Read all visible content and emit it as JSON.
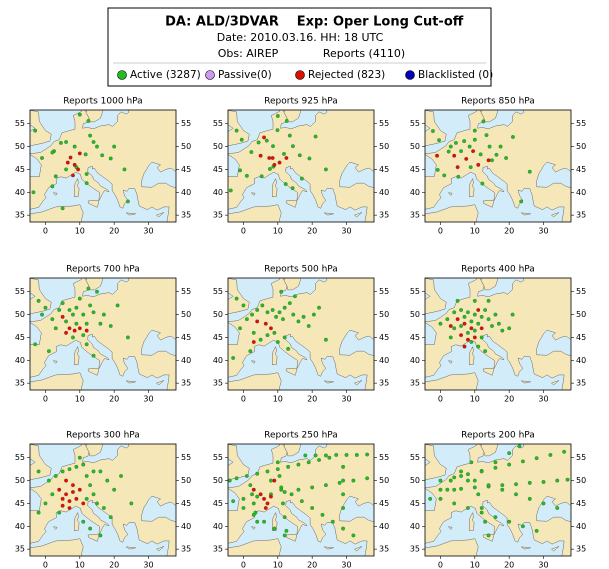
{
  "header": {
    "title_left": "DA: ALD/3DVAR",
    "title_right": "Exp: Oper Long Cut-off",
    "date": "Date: 2010.03.16. HH: 18 UTC",
    "obs": "Obs: AIREP",
    "reports": "Reports (4110)"
  },
  "legend": [
    {
      "label": "Active (3287)",
      "color": "#22bb22"
    },
    {
      "label": "Passive(0)",
      "color": "#cc99ee"
    },
    {
      "label": "Rejected (823)",
      "color": "#dd1100"
    },
    {
      "label": "Blacklisted (0)",
      "color": "#0000bb"
    }
  ],
  "axes": {
    "xlim": [
      -4.5,
      38
    ],
    "ylim": [
      33.5,
      58
    ],
    "xticks": [
      0,
      10,
      20,
      30
    ],
    "yticks": [
      35,
      40,
      45,
      50,
      55
    ]
  },
  "panels": [
    {
      "title": "Reports 1000 hPa",
      "active": [
        [
          2.5,
          49
        ],
        [
          2,
          48.7
        ],
        [
          4.5,
          50.8
        ],
        [
          8.5,
          50
        ],
        [
          11.7,
          48.3
        ],
        [
          14,
          51
        ],
        [
          16.5,
          48.1
        ],
        [
          13,
          52.4
        ],
        [
          6,
          51
        ],
        [
          12.5,
          55.6
        ],
        [
          19,
          47.4
        ],
        [
          -3,
          53.5
        ],
        [
          9,
          45.5
        ],
        [
          12,
          42
        ],
        [
          2,
          41.3
        ],
        [
          -1,
          47.5
        ],
        [
          6,
          45
        ],
        [
          15,
          50
        ],
        [
          20,
          50
        ],
        [
          23,
          45
        ],
        [
          -3.5,
          40
        ],
        [
          10,
          57
        ],
        [
          12,
          44
        ],
        [
          24,
          38
        ],
        [
          3,
          43.5
        ],
        [
          5,
          36.5
        ]
      ],
      "rejected": [
        [
          7.3,
          47.6
        ],
        [
          8.5,
          46
        ],
        [
          9.5,
          45
        ],
        [
          6.5,
          46.5
        ],
        [
          10,
          48.5
        ],
        [
          8,
          43.7
        ]
      ]
    },
    {
      "title": "Reports 925 hPa",
      "active": [
        [
          2.3,
          48.8
        ],
        [
          4.4,
          50.9
        ],
        [
          8.6,
          50.1
        ],
        [
          11.8,
          48.4
        ],
        [
          6.8,
          51.3
        ],
        [
          13.5,
          52.4
        ],
        [
          16.4,
          48.1
        ],
        [
          -0.5,
          51.5
        ],
        [
          -2,
          53.5
        ],
        [
          9.9,
          53.6
        ],
        [
          12.6,
          55.6
        ],
        [
          14.4,
          50.1
        ],
        [
          19.2,
          47.4
        ],
        [
          21,
          52.2
        ],
        [
          8.7,
          45.6
        ],
        [
          7.7,
          45.1
        ],
        [
          1,
          43.6
        ],
        [
          -1,
          44.8
        ],
        [
          5.3,
          43.5
        ],
        [
          -3.7,
          40.4
        ],
        [
          12.3,
          41.8
        ],
        [
          14.3,
          40.9
        ],
        [
          10,
          56.7
        ],
        [
          24,
          45
        ],
        [
          17,
          43
        ]
      ],
      "rejected": [
        [
          7.5,
          47.5
        ],
        [
          8.5,
          47.5
        ],
        [
          9,
          46
        ],
        [
          10.5,
          46.5
        ],
        [
          6,
          52
        ],
        [
          5,
          48
        ],
        [
          12.5,
          47.5
        ]
      ]
    },
    {
      "title": "Reports 850 hPa",
      "active": [
        [
          2.4,
          48.9
        ],
        [
          4.5,
          50.8
        ],
        [
          8.5,
          50
        ],
        [
          11.7,
          48.3
        ],
        [
          6.9,
          51.2
        ],
        [
          13.4,
          52.5
        ],
        [
          16.3,
          48.2
        ],
        [
          -0.4,
          51.4
        ],
        [
          -2.2,
          53.4
        ],
        [
          10,
          53.5
        ],
        [
          12.5,
          55.5
        ],
        [
          14.3,
          50
        ],
        [
          19.1,
          47.5
        ],
        [
          21.1,
          52.1
        ],
        [
          8.8,
          45.5
        ],
        [
          1.1,
          43.7
        ],
        [
          -0.8,
          44.9
        ],
        [
          5.2,
          43.4
        ],
        [
          12.2,
          41.9
        ],
        [
          17.5,
          50
        ],
        [
          6,
          49
        ],
        [
          3,
          50
        ],
        [
          10,
          51.5
        ],
        [
          15,
          47
        ],
        [
          26,
          44.5
        ],
        [
          23.5,
          38
        ]
      ],
      "rejected": [
        [
          7.5,
          47.3
        ],
        [
          5,
          45.5
        ],
        [
          9.5,
          49
        ],
        [
          11,
          46
        ],
        [
          4,
          48
        ],
        [
          -1,
          48
        ],
        [
          14,
          47
        ]
      ]
    },
    {
      "title": "Reports 700 hPa",
      "active": [
        [
          2,
          49
        ],
        [
          4,
          51
        ],
        [
          5,
          52.5
        ],
        [
          7,
          51
        ],
        [
          8,
          50
        ],
        [
          9,
          51.5
        ],
        [
          10,
          53.5
        ],
        [
          11,
          50
        ],
        [
          12,
          48
        ],
        [
          13,
          52
        ],
        [
          14,
          50.5
        ],
        [
          16,
          48
        ],
        [
          17,
          50
        ],
        [
          19,
          47.5
        ],
        [
          21,
          52
        ],
        [
          0,
          51.5
        ],
        [
          -2,
          53
        ],
        [
          -1,
          50
        ],
        [
          3,
          47
        ],
        [
          6,
          48.5
        ],
        [
          9,
          48
        ],
        [
          11,
          45.5
        ],
        [
          8,
          45
        ],
        [
          12,
          43.5
        ],
        [
          14,
          41
        ],
        [
          -3,
          43.5
        ],
        [
          1,
          42
        ],
        [
          24,
          45
        ],
        [
          15,
          55
        ],
        [
          12.5,
          55.7
        ]
      ],
      "rejected": [
        [
          7,
          47
        ],
        [
          8.5,
          46.5
        ],
        [
          10,
          47
        ],
        [
          6,
          46
        ],
        [
          5,
          49.5
        ],
        [
          12,
          46.5
        ]
      ]
    },
    {
      "title": "Reports 500 hPa",
      "active": [
        [
          1,
          49
        ],
        [
          2.5,
          50
        ],
        [
          4,
          51
        ],
        [
          5.5,
          52
        ],
        [
          7,
          50.5
        ],
        [
          8.5,
          51
        ],
        [
          9.5,
          49.5
        ],
        [
          10.5,
          50.5
        ],
        [
          11.5,
          49
        ],
        [
          12,
          51.5
        ],
        [
          13.5,
          52.5
        ],
        [
          14.5,
          50
        ],
        [
          16,
          48.5
        ],
        [
          17.5,
          49.5
        ],
        [
          19,
          47.5
        ],
        [
          20.5,
          50
        ],
        [
          22,
          51.5
        ],
        [
          0,
          52
        ],
        [
          -2,
          53.5
        ],
        [
          -1,
          47
        ],
        [
          3,
          46
        ],
        [
          5,
          44.5
        ],
        [
          7,
          45.5
        ],
        [
          9,
          46
        ],
        [
          10,
          44
        ],
        [
          12,
          45
        ],
        [
          13,
          42.5
        ],
        [
          -3,
          40.5
        ],
        [
          2,
          42
        ],
        [
          24,
          44.5
        ],
        [
          11,
          55
        ],
        [
          15,
          54
        ]
      ],
      "rejected": [
        [
          6.5,
          48
        ],
        [
          8,
          47
        ],
        [
          4,
          48.5
        ],
        [
          3,
          44
        ]
      ]
    },
    {
      "title": "Reports 400 hPa",
      "active": [
        [
          2,
          49
        ],
        [
          4,
          50.5
        ],
        [
          6,
          51
        ],
        [
          7,
          49.5
        ],
        [
          8,
          50.5
        ],
        [
          9,
          48.5
        ],
        [
          10,
          50
        ],
        [
          11,
          48
        ],
        [
          12,
          49.5
        ],
        [
          13,
          51
        ],
        [
          14,
          49
        ],
        [
          15,
          47.5
        ],
        [
          16,
          50
        ],
        [
          17,
          48
        ],
        [
          18,
          46.5
        ],
        [
          20,
          47
        ],
        [
          6,
          47.5
        ],
        [
          8,
          46
        ],
        [
          10,
          46.5
        ],
        [
          12,
          45
        ],
        [
          9,
          44
        ],
        [
          11,
          43
        ],
        [
          13,
          42
        ],
        [
          4,
          47
        ],
        [
          3,
          45
        ],
        [
          0,
          48
        ],
        [
          5,
          53
        ],
        [
          10,
          53
        ],
        [
          14,
          53
        ],
        [
          21,
          50
        ]
      ],
      "rejected": [
        [
          5,
          49
        ],
        [
          7,
          48
        ],
        [
          9,
          47
        ],
        [
          6,
          45.5
        ],
        [
          8,
          44.5
        ],
        [
          10,
          45
        ],
        [
          11,
          51
        ],
        [
          3,
          47.5
        ],
        [
          12,
          47
        ],
        [
          7,
          43
        ]
      ]
    },
    {
      "title": "Reports 300 hPa",
      "active": [
        [
          1,
          50
        ],
        [
          3,
          51
        ],
        [
          5,
          52
        ],
        [
          7,
          52.5
        ],
        [
          9,
          53
        ],
        [
          11,
          53.5
        ],
        [
          12,
          51
        ],
        [
          13,
          49
        ],
        [
          14,
          52
        ],
        [
          16,
          52
        ],
        [
          18,
          50
        ],
        [
          20,
          48
        ],
        [
          14,
          47
        ],
        [
          12,
          46
        ],
        [
          15,
          45
        ],
        [
          17,
          44
        ],
        [
          19,
          42
        ],
        [
          2,
          47
        ],
        [
          0,
          45
        ],
        [
          -2,
          43
        ],
        [
          4,
          43
        ],
        [
          11,
          41
        ],
        [
          13,
          39.5
        ],
        [
          22,
          51
        ],
        [
          10,
          55
        ],
        [
          -2,
          52
        ],
        [
          25,
          45
        ],
        [
          16,
          38
        ]
      ],
      "rejected": [
        [
          4,
          48
        ],
        [
          5,
          46
        ],
        [
          6,
          47
        ],
        [
          7,
          45.5
        ],
        [
          8,
          47.5
        ],
        [
          9,
          46
        ],
        [
          10,
          48
        ],
        [
          7,
          44
        ],
        [
          11,
          45
        ],
        [
          5,
          44.5
        ],
        [
          8,
          49
        ],
        [
          6,
          50
        ]
      ]
    },
    {
      "title": "Reports 250 hPa",
      "active": [
        [
          18,
          55.5
        ],
        [
          21,
          55.5
        ],
        [
          24,
          55.5
        ],
        [
          27,
          55.6
        ],
        [
          30,
          55.6
        ],
        [
          33,
          55.6
        ],
        [
          36,
          55.7
        ],
        [
          -4,
          50
        ],
        [
          -2,
          50.5
        ],
        [
          1,
          51
        ],
        [
          4,
          51.5
        ],
        [
          7,
          52
        ],
        [
          10,
          52.5
        ],
        [
          13,
          53
        ],
        [
          16,
          53.5
        ],
        [
          19,
          54
        ],
        [
          22,
          54.5
        ],
        [
          25,
          55
        ],
        [
          0,
          46
        ],
        [
          4,
          46.5
        ],
        [
          8,
          47
        ],
        [
          12,
          47.5
        ],
        [
          16,
          48
        ],
        [
          20,
          48.5
        ],
        [
          24,
          49
        ],
        [
          28,
          49.5
        ],
        [
          32,
          50
        ],
        [
          36,
          50.5
        ],
        [
          8,
          50
        ],
        [
          11,
          48.5
        ],
        [
          14,
          47
        ],
        [
          17,
          45.5
        ],
        [
          20,
          44
        ],
        [
          23,
          42.5
        ],
        [
          26,
          41
        ],
        [
          29,
          39.5
        ],
        [
          32,
          38
        ],
        [
          2,
          49
        ],
        [
          2.5,
          47
        ],
        [
          3,
          45
        ],
        [
          3.5,
          43
        ],
        [
          4,
          41
        ],
        [
          10,
          54
        ],
        [
          10.5,
          51
        ],
        [
          11,
          48
        ],
        [
          11.5,
          45
        ],
        [
          12,
          42
        ],
        [
          12.5,
          39
        ],
        [
          -3,
          45.5
        ],
        [
          0,
          44
        ],
        [
          3,
          42.5
        ],
        [
          6,
          41
        ],
        [
          9,
          39.5
        ],
        [
          12,
          38
        ],
        [
          29,
          53
        ],
        [
          29,
          50
        ],
        [
          29,
          47
        ],
        [
          29,
          44
        ]
      ],
      "rejected": [
        [
          5,
          47
        ],
        [
          6,
          46
        ],
        [
          7,
          45
        ],
        [
          6.5,
          44
        ],
        [
          8,
          46.5
        ],
        [
          3,
          48
        ],
        [
          9,
          50
        ]
      ]
    },
    {
      "title": "Reports 200 hPa",
      "active": [
        [
          0,
          50
        ],
        [
          4,
          50.7
        ],
        [
          8,
          51.4
        ],
        [
          12,
          52.1
        ],
        [
          16,
          52.8
        ],
        [
          20,
          53.5
        ],
        [
          24,
          54.2
        ],
        [
          28,
          54.9
        ],
        [
          32,
          55.6
        ],
        [
          36,
          56.3
        ],
        [
          2,
          48
        ],
        [
          6,
          48.2
        ],
        [
          10,
          48.5
        ],
        [
          14,
          48.7
        ],
        [
          18,
          49
        ],
        [
          22,
          49.2
        ],
        [
          26,
          49.5
        ],
        [
          30,
          49.7
        ],
        [
          34,
          50
        ],
        [
          37,
          50.2
        ],
        [
          6,
          51
        ],
        [
          10,
          50
        ],
        [
          14,
          49
        ],
        [
          18,
          48
        ],
        [
          22,
          47
        ],
        [
          26,
          46
        ],
        [
          30,
          45
        ],
        [
          34,
          44
        ],
        [
          4,
          45
        ],
        [
          8,
          44
        ],
        [
          12,
          43
        ],
        [
          16,
          42
        ],
        [
          20,
          41
        ],
        [
          24,
          40
        ],
        [
          28,
          39
        ],
        [
          0,
          46
        ],
        [
          4,
          48
        ],
        [
          8,
          50
        ],
        [
          12,
          52
        ],
        [
          16,
          54
        ],
        [
          20,
          56
        ],
        [
          23,
          57.5
        ],
        [
          11,
          47
        ],
        [
          12,
          44
        ],
        [
          13,
          41
        ],
        [
          14,
          38
        ],
        [
          -3,
          46
        ],
        [
          0,
          48
        ],
        [
          3,
          50
        ],
        [
          6,
          52
        ],
        [
          9,
          54
        ]
      ],
      "rejected": []
    }
  ]
}
